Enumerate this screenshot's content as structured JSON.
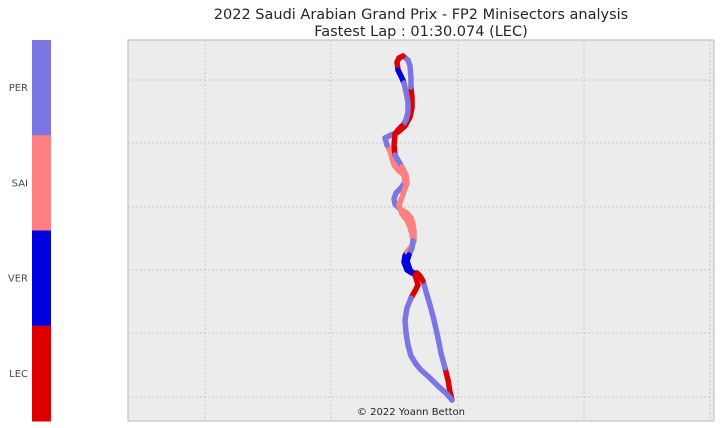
{
  "chart_data": {
    "type": "line",
    "title": "2022 Saudi Arabian Grand Prix - FP2 Minisectors analysis",
    "subtitle": "Fastest Lap : 01:30.074 (LEC)",
    "credit": "© 2022 Yoann Betton",
    "xlabel": "",
    "ylabel": "",
    "grid": true,
    "legend": {
      "type": "colorbar",
      "placement": "left",
      "drivers": [
        "PER",
        "SAI",
        "VER",
        "LEC"
      ],
      "colors": {
        "PER": "#7b76e3",
        "SAI": "#ff8080",
        "VER": "#0000dd",
        "LEC": "#dd0000"
      }
    },
    "track": [
      [
        452,
        400
      ],
      [
        450,
        392
      ],
      [
        448,
        380
      ],
      [
        445,
        368
      ],
      [
        441,
        353
      ],
      [
        438,
        338
      ],
      [
        434,
        320
      ],
      [
        430,
        305
      ],
      [
        427,
        295
      ],
      [
        423,
        281
      ],
      [
        420,
        276
      ],
      [
        417,
        273
      ],
      [
        412,
        273
      ],
      [
        407,
        270
      ],
      [
        404,
        262
      ],
      [
        405,
        256
      ],
      [
        407,
        252
      ],
      [
        411,
        247
      ],
      [
        414,
        241
      ],
      [
        414,
        232
      ],
      [
        413,
        224
      ],
      [
        411,
        218
      ],
      [
        407,
        213
      ],
      [
        400,
        209
      ],
      [
        395,
        204
      ],
      [
        394,
        199
      ],
      [
        396,
        193
      ],
      [
        401,
        188
      ],
      [
        405,
        182
      ],
      [
        404,
        175
      ],
      [
        399,
        171
      ],
      [
        394,
        165
      ],
      [
        392,
        158
      ],
      [
        390,
        151
      ],
      [
        387,
        145
      ],
      [
        385,
        138
      ],
      [
        391,
        135
      ],
      [
        398,
        132
      ],
      [
        405,
        126
      ],
      [
        410,
        117
      ],
      [
        412,
        108
      ],
      [
        412,
        98
      ],
      [
        411,
        87
      ],
      [
        411,
        79
      ],
      [
        410,
        66
      ],
      [
        408,
        60
      ],
      [
        403,
        56
      ],
      [
        399,
        58
      ],
      [
        397,
        62
      ],
      [
        398,
        70
      ],
      [
        401,
        76
      ],
      [
        404,
        83
      ],
      [
        406,
        92
      ],
      [
        408,
        102
      ],
      [
        408,
        112
      ],
      [
        406,
        120
      ],
      [
        402,
        126
      ],
      [
        398,
        130
      ],
      [
        395,
        134
      ],
      [
        394,
        145
      ],
      [
        395,
        155
      ],
      [
        399,
        162
      ],
      [
        402,
        167
      ],
      [
        406,
        175
      ],
      [
        407,
        183
      ],
      [
        404,
        191
      ],
      [
        402,
        197
      ],
      [
        399,
        205
      ],
      [
        402,
        214
      ],
      [
        407,
        220
      ],
      [
        410,
        227
      ],
      [
        412,
        234
      ],
      [
        413,
        241
      ],
      [
        412,
        248
      ],
      [
        409,
        255
      ],
      [
        407,
        261
      ],
      [
        410,
        270
      ],
      [
        415,
        275
      ],
      [
        418,
        285
      ],
      [
        415,
        291
      ],
      [
        411,
        298
      ],
      [
        407,
        308
      ],
      [
        405,
        320
      ],
      [
        406,
        333
      ],
      [
        408,
        345
      ],
      [
        411,
        356
      ],
      [
        416,
        364
      ],
      [
        421,
        370
      ],
      [
        430,
        378
      ],
      [
        438,
        386
      ],
      [
        446,
        393
      ],
      [
        452,
        400
      ]
    ],
    "minisectors": [
      {
        "from": 0,
        "to": 3,
        "driver": "LEC"
      },
      {
        "from": 3,
        "to": 9,
        "driver": "PER"
      },
      {
        "from": 9,
        "to": 12,
        "driver": "LEC"
      },
      {
        "from": 12,
        "to": 16,
        "driver": "VER"
      },
      {
        "from": 16,
        "to": 23,
        "driver": "SAI"
      },
      {
        "from": 23,
        "to": 28,
        "driver": "PER"
      },
      {
        "from": 28,
        "to": 34,
        "driver": "SAI"
      },
      {
        "from": 34,
        "to": 37,
        "driver": "PER"
      },
      {
        "from": 37,
        "to": 42,
        "driver": "LEC"
      },
      {
        "from": 42,
        "to": 46,
        "driver": "PER"
      },
      {
        "from": 46,
        "to": 49,
        "driver": "LEC"
      },
      {
        "from": 49,
        "to": 51,
        "driver": "VER"
      },
      {
        "from": 51,
        "to": 56,
        "driver": "PER"
      },
      {
        "from": 56,
        "to": 60,
        "driver": "LEC"
      },
      {
        "from": 60,
        "to": 62,
        "driver": "PER"
      },
      {
        "from": 62,
        "to": 67,
        "driver": "SAI"
      },
      {
        "from": 67,
        "to": 72,
        "driver": "SAI"
      },
      {
        "from": 72,
        "to": 74,
        "driver": "PER"
      },
      {
        "from": 74,
        "to": 77,
        "driver": "VER"
      },
      {
        "from": 77,
        "to": 80,
        "driver": "LEC"
      },
      {
        "from": 80,
        "to": 86,
        "driver": "PER"
      },
      {
        "from": 86,
        "to": 91,
        "driver": "PER"
      }
    ]
  }
}
